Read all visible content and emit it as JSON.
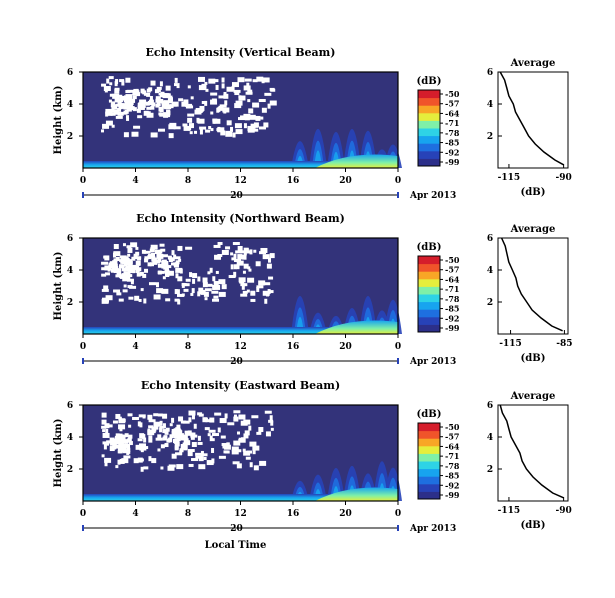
{
  "figure": {
    "date_label": "Apr 2013",
    "xlabel": "Local Time",
    "ylabel": "Height (km)",
    "cbar_title": "(dB)",
    "profile_title": "Average",
    "profile_xlabel": "(dB)",
    "colors": {
      "background": "#33337a",
      "scale": [
        "#2c2f8a",
        "#2742b8",
        "#1e6fe0",
        "#17a4ef",
        "#2ed3e6",
        "#7ff0a8",
        "#e5ee3c",
        "#f8a626",
        "#f0542a",
        "#d51d2b"
      ]
    }
  },
  "chart_data": [
    {
      "type": "heatmap",
      "title": "Echo Intensity (Vertical Beam)",
      "xlabel": "Local Time",
      "ylabel": "Height (km)",
      "xlim": [
        0,
        24
      ],
      "ylim": [
        0,
        6
      ],
      "x_ticks": [
        "0",
        "4",
        "8",
        "12",
        "16",
        "20",
        "0"
      ],
      "x_tick_values": [
        0,
        4,
        8,
        12,
        16,
        20,
        24
      ],
      "y_ticks": [
        "2",
        "4",
        "6"
      ],
      "day_label": "20",
      "colorbar": {
        "title": "(dB)",
        "ticks": [
          "-50",
          "-57",
          "-64",
          "-71",
          "-78",
          "-85",
          "-92",
          "-99"
        ]
      },
      "profile": {
        "title": "Average",
        "xlabel": "(dB)",
        "xlim": [
          -120,
          -88
        ],
        "x_ticks": [
          "-115",
          "-90"
        ],
        "y_ticks": [
          "2",
          "4",
          "6"
        ],
        "heights": [
          0.2,
          0.5,
          1.0,
          1.5,
          2.0,
          2.5,
          3.0,
          3.5,
          4.0,
          4.5,
          5.0,
          5.5,
          6.0
        ],
        "values": [
          -90,
          -94,
          -99,
          -103,
          -106,
          -108,
          -110,
          -112,
          -113,
          -115,
          -116,
          -117,
          -119
        ]
      }
    },
    {
      "type": "heatmap",
      "title": "Echo Intensity (Northward Beam)",
      "xlabel": "Local Time",
      "ylabel": "Height (km)",
      "xlim": [
        0,
        24
      ],
      "ylim": [
        0,
        6
      ],
      "x_ticks": [
        "0",
        "4",
        "8",
        "12",
        "16",
        "20",
        "0"
      ],
      "x_tick_values": [
        0,
        4,
        8,
        12,
        16,
        20,
        24
      ],
      "y_ticks": [
        "2",
        "4",
        "6"
      ],
      "day_label": "20",
      "colorbar": {
        "title": "(dB)",
        "ticks": [
          "-50",
          "-57",
          "-64",
          "-71",
          "-78",
          "-85",
          "-92",
          "-99"
        ]
      },
      "profile": {
        "title": "Average",
        "xlabel": "(dB)",
        "xlim": [
          -122,
          -83
        ],
        "x_ticks": [
          "-115",
          "-85"
        ],
        "y_ticks": [
          "2",
          "4",
          "6"
        ],
        "heights": [
          0.2,
          0.5,
          1.0,
          1.5,
          2.0,
          2.5,
          3.0,
          3.5,
          4.0,
          4.5,
          5.0,
          5.5,
          6.0
        ],
        "values": [
          -86,
          -92,
          -98,
          -103,
          -106,
          -109,
          -111,
          -112,
          -114,
          -116,
          -117,
          -118,
          -120
        ]
      }
    },
    {
      "type": "heatmap",
      "title": "Echo Intensity (Eastward Beam)",
      "xlabel": "Local Time",
      "ylabel": "Height (km)",
      "xlim": [
        0,
        24
      ],
      "ylim": [
        0,
        6
      ],
      "x_ticks": [
        "0",
        "4",
        "8",
        "12",
        "16",
        "20",
        "0"
      ],
      "x_tick_values": [
        0,
        4,
        8,
        12,
        16,
        20,
        24
      ],
      "y_ticks": [
        "2",
        "4",
        "6"
      ],
      "day_label": "20",
      "colorbar": {
        "title": "(dB)",
        "ticks": [
          "-50",
          "-57",
          "-64",
          "-71",
          "-78",
          "-85",
          "-92",
          "-99"
        ]
      },
      "profile": {
        "title": "Average",
        "xlabel": "(dB)",
        "xlim": [
          -120,
          -88
        ],
        "x_ticks": [
          "-115",
          "-90"
        ],
        "y_ticks": [
          "2",
          "4",
          "6"
        ],
        "heights": [
          0.2,
          0.5,
          1.0,
          1.5,
          2.0,
          2.5,
          3.0,
          3.5,
          4.0,
          4.5,
          5.0,
          5.5,
          6.0
        ],
        "values": [
          -90,
          -95,
          -100,
          -104,
          -107,
          -109,
          -110,
          -112,
          -114,
          -115,
          -116,
          -118,
          -119
        ]
      }
    }
  ]
}
